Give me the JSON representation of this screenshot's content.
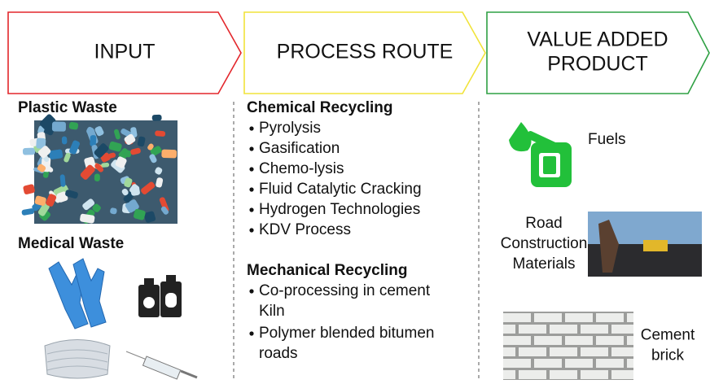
{
  "headers": [
    {
      "lines": [
        "INPUT"
      ]
    },
    {
      "lines": [
        "PROCESS ROUTE"
      ]
    },
    {
      "lines": [
        "VALUE ADDED",
        "PRODUCT"
      ]
    }
  ],
  "input": {
    "sections": [
      "Plastic Waste",
      "Medical Waste"
    ]
  },
  "process": {
    "groups": [
      {
        "title": "Chemical Recycling",
        "items": [
          [
            "Pyrolysis"
          ],
          [
            "Gasification"
          ],
          [
            "Chemo-lysis"
          ],
          [
            "Fluid Catalytic Cracking"
          ],
          [
            "Hydrogen Technologies"
          ],
          [
            "KDV Process"
          ]
        ]
      },
      {
        "title": "Mechanical Recycling",
        "items": [
          [
            "Co-processing in cement",
            "Kiln"
          ],
          [
            "Polymer blended bitumen",
            "roads"
          ]
        ]
      }
    ]
  },
  "products": [
    {
      "lines": [
        "Fuels"
      ]
    },
    {
      "lines": [
        "Road",
        "Construction",
        "Materials"
      ]
    },
    {
      "lines": [
        "Cement",
        "brick"
      ]
    }
  ]
}
